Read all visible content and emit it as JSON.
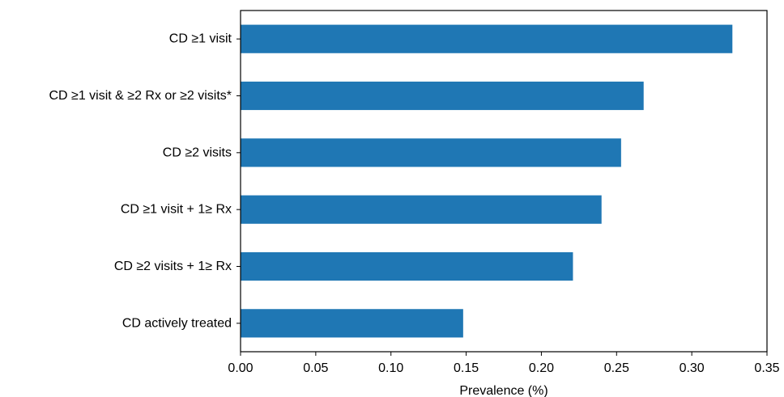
{
  "chart_data": {
    "type": "bar",
    "orientation": "horizontal",
    "categories": [
      "CD ≥1 visit",
      "CD ≥1 visit & ≥2 Rx or ≥2 visits*",
      "CD ≥2 visits",
      "CD ≥1 visit + 1≥ Rx",
      "CD ≥2 visits + 1≥ Rx",
      "CD actively treated"
    ],
    "values": [
      0.327,
      0.268,
      0.253,
      0.24,
      0.221,
      0.148
    ],
    "xlabel": "Prevalence (%)",
    "ylabel": "",
    "xlim": [
      0.0,
      0.35
    ],
    "xticks": [
      "0.00",
      "0.05",
      "0.10",
      "0.15",
      "0.20",
      "0.25",
      "0.30",
      "0.35"
    ],
    "bar_color": "#1f77b4",
    "grid": false,
    "legend": "none"
  }
}
